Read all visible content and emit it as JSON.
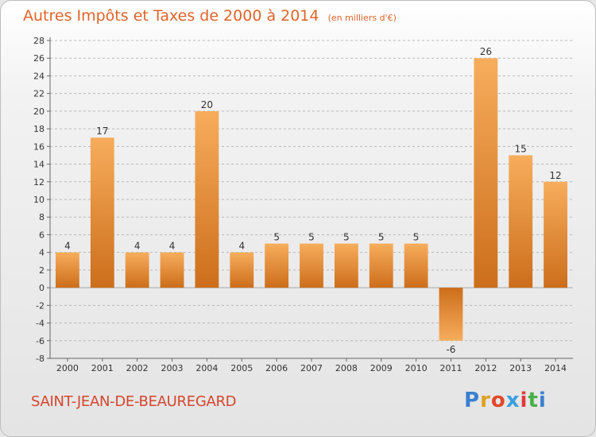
{
  "title": "Autres Impôts et Taxes de 2000 à 2014",
  "unit": "(en milliers d'€)",
  "commune": "SAINT-JEAN-DE-BEAUREGARD",
  "brand": {
    "letters": [
      "P",
      "r",
      "o",
      "x",
      "i",
      "t",
      "i"
    ],
    "colors": [
      "#3a7fd0",
      "#e0a020",
      "#e04828",
      "#3aa0e0",
      "#e03a3a",
      "#48b048",
      "#3a7fd0"
    ]
  },
  "colors": {
    "title": "#e0642a",
    "bar_light": "#f7ad5c",
    "bar_dark": "#cc6e1b",
    "commune": "#d5462e"
  },
  "chart_data": {
    "type": "bar",
    "categories": [
      "2000",
      "2001",
      "2002",
      "2003",
      "2004",
      "2005",
      "2006",
      "2007",
      "2008",
      "2009",
      "2010",
      "2011",
      "2012",
      "2013",
      "2014"
    ],
    "values": [
      4,
      17,
      4,
      4,
      20,
      4,
      5,
      5,
      5,
      5,
      5,
      -6,
      26,
      15,
      12
    ],
    "data_labels": [
      "4",
      "17",
      "4",
      "4",
      "20",
      "4",
      "5",
      "5",
      "5",
      "5",
      "5",
      "-6",
      "26",
      "15",
      "12"
    ],
    "ylim": [
      -8,
      28
    ],
    "yticks": [
      -8,
      -6,
      -4,
      -2,
      0,
      2,
      4,
      6,
      8,
      10,
      12,
      14,
      16,
      18,
      20,
      22,
      24,
      26,
      28
    ],
    "ytick_labels": [
      "-8",
      "-6",
      "-4",
      "-2",
      "0",
      "2",
      "4",
      "6",
      "8",
      "10",
      "12",
      "14",
      "16",
      "18",
      "20",
      "22",
      "24",
      "26",
      "28"
    ],
    "xlabel": "",
    "ylabel": "",
    "grid": "horizontal dashed",
    "legend": "none"
  }
}
